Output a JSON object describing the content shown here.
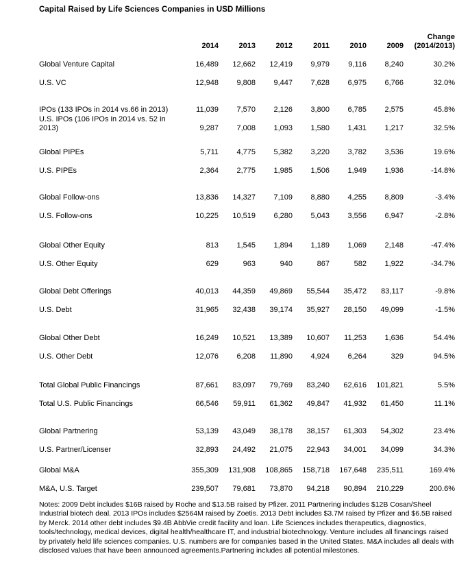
{
  "title": "Capital Raised by Life Sciences Companies in USD Millions",
  "table": {
    "year_columns": [
      "2014",
      "2013",
      "2012",
      "2011",
      "2010",
      "2009"
    ],
    "change_column": {
      "line1": "Change",
      "line2": "(2014/2013)"
    },
    "groups": [
      {
        "rows": [
          {
            "label": "Global Venture Capital",
            "values": [
              "16,489",
              "12,662",
              "12,419",
              "9,979",
              "9,116",
              "8,240"
            ],
            "change": "30.2%"
          },
          {
            "label": "U.S. VC",
            "values": [
              "12,948",
              "9,808",
              "9,447",
              "7,628",
              "6,975",
              "6,766"
            ],
            "change": "32.0%"
          }
        ]
      },
      {
        "rows": [
          {
            "label": "IPOs (133 IPOs in 2014 vs.66 in 2013)",
            "values": [
              "11,039",
              "7,570",
              "2,126",
              "3,800",
              "6,785",
              "2,575"
            ],
            "change": "45.8%"
          },
          {
            "label": "U.S. IPOs (106 IPOs in 2014 vs. 52 in 2013)",
            "values": [
              "9,287",
              "7,008",
              "1,093",
              "1,580",
              "1,431",
              "1,217"
            ],
            "change": "32.5%"
          }
        ]
      },
      {
        "rows": [
          {
            "label": "Global PIPEs",
            "values": [
              "5,711",
              "4,775",
              "5,382",
              "3,220",
              "3,782",
              "3,536"
            ],
            "change": "19.6%"
          },
          {
            "label": "U.S. PIPEs",
            "values": [
              "2,364",
              "2,775",
              "1,985",
              "1,506",
              "1,949",
              "1,936"
            ],
            "change": "-14.8%"
          }
        ]
      },
      {
        "rows": [
          {
            "label": "Global Follow-ons",
            "values": [
              "13,836",
              "14,327",
              "7,109",
              "8,880",
              "4,255",
              "8,809"
            ],
            "change": "-3.4%"
          },
          {
            "label": "U.S. Follow-ons",
            "values": [
              "10,225",
              "10,519",
              "6,280",
              "5,043",
              "3,556",
              "6,947"
            ],
            "change": "-2.8%"
          }
        ]
      },
      {
        "rows": [
          {
            "label": "Global Other Equity",
            "values": [
              "813",
              "1,545",
              "1,894",
              "1,189",
              "1,069",
              "2,148"
            ],
            "change": "-47.4%"
          },
          {
            "label": "U.S. Other Equity",
            "values": [
              "629",
              "963",
              "940",
              "867",
              "582",
              "1,922"
            ],
            "change": "-34.7%"
          }
        ]
      },
      {
        "rows": [
          {
            "label": "Global Debt Offerings",
            "values": [
              "40,013",
              "44,359",
              "49,869",
              "55,544",
              "35,472",
              "83,117"
            ],
            "change": "-9.8%"
          },
          {
            "label": "U.S. Debt",
            "values": [
              "31,965",
              "32,438",
              "39,174",
              "35,927",
              "28,150",
              "49,099"
            ],
            "change": "-1.5%"
          }
        ]
      },
      {
        "rows": [
          {
            "label": "Global Other Debt",
            "values": [
              "16,249",
              "10,521",
              "13,389",
              "10,607",
              "11,253",
              "1,636"
            ],
            "change": "54.4%"
          },
          {
            "label": "U.S. Other Debt",
            "values": [
              "12,076",
              "6,208",
              "11,890",
              "4,924",
              "6,264",
              "329"
            ],
            "change": "94.5%"
          }
        ]
      },
      {
        "rows": [
          {
            "label": "Total Global Public Financings",
            "values": [
              "87,661",
              "83,097",
              "79,769",
              "83,240",
              "62,616",
              "101,821"
            ],
            "change": "5.5%"
          },
          {
            "label": "Total U.S. Public Financings",
            "values": [
              "66,546",
              "59,911",
              "61,362",
              "49,847",
              "41,932",
              "61,450"
            ],
            "change": "11.1%"
          }
        ]
      },
      {
        "rows": [
          {
            "label": "Global Partnering",
            "values": [
              "53,139",
              "43,049",
              "38,178",
              "38,157",
              "61,303",
              "54,302"
            ],
            "change": "23.4%"
          },
          {
            "label": "U.S. Partner/Licenser",
            "values": [
              "32,893",
              "24,492",
              "21,075",
              "22,943",
              "34,001",
              "34,099"
            ],
            "change": "34.3%"
          }
        ]
      },
      {
        "rows": [
          {
            "label": "Global M&A",
            "values": [
              "355,309",
              "131,908",
              "108,865",
              "158,718",
              "167,648",
              "235,511"
            ],
            "change": "169.4%"
          },
          {
            "label": "M&A, U.S. Target",
            "values": [
              "239,507",
              "79,681",
              "73,870",
              "94,218",
              "90,894",
              "210,229"
            ],
            "change": "200.6%"
          }
        ]
      }
    ]
  },
  "chart_data": {
    "type": "table",
    "title": "Capital Raised by Life Sciences Companies in USD Millions",
    "columns": [
      "Category",
      "2014",
      "2013",
      "2012",
      "2011",
      "2010",
      "2009",
      "Change (2014/2013)"
    ],
    "rows": [
      [
        "Global Venture Capital",
        16489,
        12662,
        12419,
        9979,
        9116,
        8240,
        "30.2%"
      ],
      [
        "U.S. VC",
        12948,
        9808,
        9447,
        7628,
        6975,
        6766,
        "32.0%"
      ],
      [
        "IPOs (133 IPOs in 2014 vs.66 in 2013)",
        11039,
        7570,
        2126,
        3800,
        6785,
        2575,
        "45.8%"
      ],
      [
        "U.S. IPOs (106 IPOs in 2014 vs. 52 in 2013)",
        9287,
        7008,
        1093,
        1580,
        1431,
        1217,
        "32.5%"
      ],
      [
        "Global PIPEs",
        5711,
        4775,
        5382,
        3220,
        3782,
        3536,
        "19.6%"
      ],
      [
        "U.S. PIPEs",
        2364,
        2775,
        1985,
        1506,
        1949,
        1936,
        "-14.8%"
      ],
      [
        "Global Follow-ons",
        13836,
        14327,
        7109,
        8880,
        4255,
        8809,
        "-3.4%"
      ],
      [
        "U.S. Follow-ons",
        10225,
        10519,
        6280,
        5043,
        3556,
        6947,
        "-2.8%"
      ],
      [
        "Global Other Equity",
        813,
        1545,
        1894,
        1189,
        1069,
        2148,
        "-47.4%"
      ],
      [
        "U.S. Other Equity",
        629,
        963,
        940,
        867,
        582,
        1922,
        "-34.7%"
      ],
      [
        "Global Debt Offerings",
        40013,
        44359,
        49869,
        55544,
        35472,
        83117,
        "-9.8%"
      ],
      [
        "U.S. Debt",
        31965,
        32438,
        39174,
        35927,
        28150,
        49099,
        "-1.5%"
      ],
      [
        "Global Other Debt",
        16249,
        10521,
        13389,
        10607,
        11253,
        1636,
        "54.4%"
      ],
      [
        "U.S. Other Debt",
        12076,
        6208,
        11890,
        4924,
        6264,
        329,
        "94.5%"
      ],
      [
        "Total Global Public Financings",
        87661,
        83097,
        79769,
        83240,
        62616,
        101821,
        "5.5%"
      ],
      [
        "Total U.S. Public Financings",
        66546,
        59911,
        61362,
        49847,
        41932,
        61450,
        "11.1%"
      ],
      [
        "Global Partnering",
        53139,
        43049,
        38178,
        38157,
        61303,
        54302,
        "23.4%"
      ],
      [
        "U.S. Partner/Licenser",
        32893,
        24492,
        21075,
        22943,
        34001,
        34099,
        "34.3%"
      ],
      [
        "Global M&A",
        355309,
        131908,
        108865,
        158718,
        167648,
        235511,
        "169.4%"
      ],
      [
        "M&A, U.S. Target",
        239507,
        79681,
        73870,
        94218,
        90894,
        210229,
        "200.6%"
      ]
    ]
  },
  "notes": "Notes: 2009 Debt includes $16B raised by Roche and $13.5B raised by Pfizer. 2011 Partnering includes $12B Cosan/Sheel Industrial biotech deal. 2013 IPOs includes $2564M raised by Zoetis. 2013 Debt includes $3.7M raised by Pfizer and $6.5B raised by Merck. 2014 other debt includes $9.4B AbbVie credit facility and loan. Life Sciences includes therapeutics, diagnostics, tools/technology, medical devices, digital health/healthcare IT, and industrial biotechnology. Venture includes all financings raised by privately held life sciences companies. U.S. numbers are for companies based in the United States. M&A includes all deals with disclosed values that have been announced agreements.Partnering includes all potential milestones."
}
